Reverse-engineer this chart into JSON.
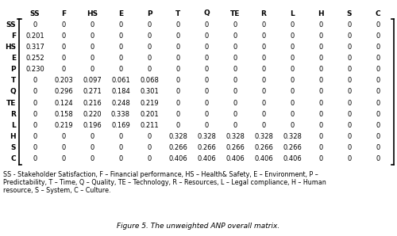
{
  "row_labels": [
    "SS",
    "F",
    "HS",
    "E",
    "P",
    "T",
    "Q",
    "TE",
    "R",
    "L",
    "H",
    "S",
    "C"
  ],
  "col_labels": [
    "SS",
    "F",
    "HS",
    "E",
    "P",
    "T",
    "Q",
    "TE",
    "R",
    "L",
    "H",
    "S",
    "C"
  ],
  "matrix": [
    [
      0,
      0,
      0,
      0,
      0,
      0,
      0,
      0,
      0,
      0,
      0,
      0,
      0
    ],
    [
      0.201,
      0,
      0,
      0,
      0,
      0,
      0,
      0,
      0,
      0,
      0,
      0,
      0
    ],
    [
      0.317,
      0,
      0,
      0,
      0,
      0,
      0,
      0,
      0,
      0,
      0,
      0,
      0
    ],
    [
      0.252,
      0,
      0,
      0,
      0,
      0,
      0,
      0,
      0,
      0,
      0,
      0,
      0
    ],
    [
      0.23,
      0,
      0,
      0,
      0,
      0,
      0,
      0,
      0,
      0,
      0,
      0,
      0
    ],
    [
      0,
      0.203,
      0.097,
      0.061,
      0.068,
      0,
      0,
      0,
      0,
      0,
      0,
      0,
      0
    ],
    [
      0,
      0.296,
      0.271,
      0.184,
      0.301,
      0,
      0,
      0,
      0,
      0,
      0,
      0,
      0
    ],
    [
      0,
      0.124,
      0.216,
      0.248,
      0.219,
      0,
      0,
      0,
      0,
      0,
      0,
      0,
      0
    ],
    [
      0,
      0.158,
      0.22,
      0.338,
      0.201,
      0,
      0,
      0,
      0,
      0,
      0,
      0,
      0
    ],
    [
      0,
      0.219,
      0.196,
      0.169,
      0.211,
      0,
      0,
      0,
      0,
      0,
      0,
      0,
      0
    ],
    [
      0,
      0,
      0,
      0,
      0,
      0.328,
      0.328,
      0.328,
      0.328,
      0.328,
      0,
      0,
      0
    ],
    [
      0,
      0,
      0,
      0,
      0,
      0.266,
      0.266,
      0.266,
      0.266,
      0.266,
      0,
      0,
      0
    ],
    [
      0,
      0,
      0,
      0,
      0,
      0.406,
      0.406,
      0.406,
      0.406,
      0.406,
      0,
      0,
      0
    ]
  ],
  "title": "Figure 5. The unweighted ANP overall matrix.",
  "footnote_line1": "SS - Stakeholder Satisfaction, F – Financial performance, HS – Health& Safety, E – Environment, P –",
  "footnote_line2": "Predictability, T – Time, Q – Quality, TE – Technology, R – Resources, L – Legal compliance, H – Human",
  "footnote_line3": "resource, S – System, C – Culture.",
  "background_color": "#ffffff",
  "text_color": "#000000",
  "cell_font_size": 6.0,
  "header_font_size": 6.5,
  "footnote_font_size": 5.8,
  "title_font_size": 6.5
}
